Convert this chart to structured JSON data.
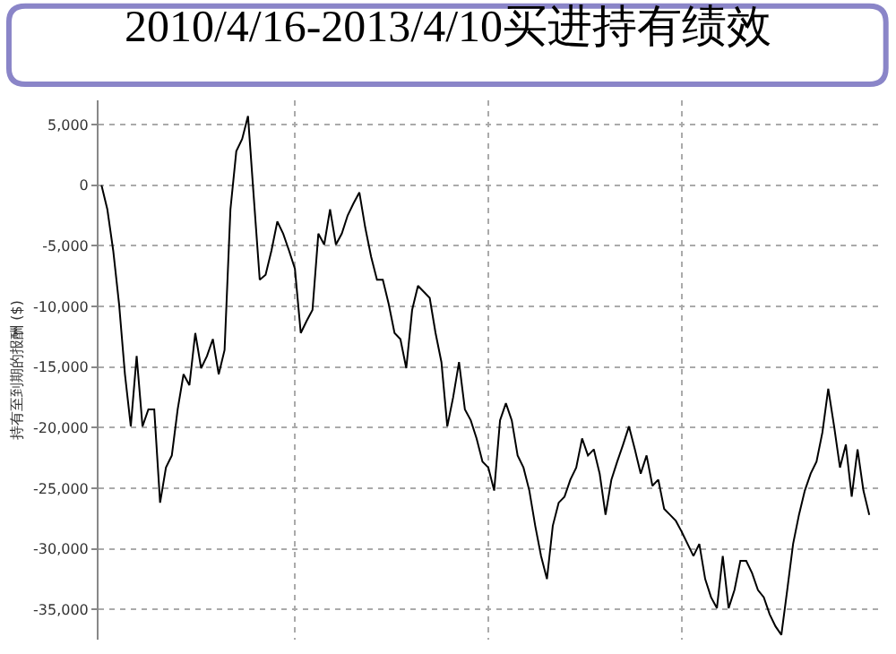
{
  "chart_data": {
    "type": "line",
    "title": "2010/4/16-2013/4/10买进持有绩效",
    "ylabel": "持有至到期的报酬 ($)",
    "categories": [
      null,
      null,
      null,
      null,
      null,
      null,
      null,
      null,
      null,
      null,
      null,
      null,
      null,
      null,
      null,
      null,
      null,
      null,
      null,
      null,
      null,
      null,
      null,
      null,
      null,
      null,
      null,
      null,
      null,
      null,
      null,
      null,
      null,
      null,
      null,
      null,
      null,
      null,
      null,
      null,
      null,
      null,
      null,
      null,
      null,
      null,
      null,
      null,
      null,
      null,
      null,
      null,
      null,
      null,
      null,
      null,
      null,
      null,
      null,
      null,
      null,
      null,
      null,
      null,
      null,
      null,
      null,
      null,
      null,
      null,
      null,
      null,
      null,
      null,
      null,
      null,
      null,
      null,
      null,
      null,
      null,
      null,
      null,
      null,
      null,
      null,
      null,
      null,
      null,
      null,
      null,
      null,
      null,
      null,
      null,
      null,
      null,
      null,
      null,
      null,
      null,
      null,
      null,
      null,
      null,
      null,
      null,
      null,
      null,
      null,
      null,
      null,
      null,
      null,
      null,
      null,
      null,
      null,
      null,
      null,
      null,
      null,
      null,
      null,
      null,
      null,
      null,
      null,
      null,
      null,
      null,
      null
    ],
    "series": [
      {
        "color": "#000000",
        "values": [
          0,
          -2000,
          -5400,
          -9800,
          -15600,
          -19900,
          -14100,
          -19900,
          -18500,
          -18500,
          -26200,
          -23300,
          -22300,
          -18500,
          -15600,
          -16500,
          -12200,
          -15100,
          -14100,
          -12700,
          -15600,
          -13600,
          -2000,
          2800,
          3800,
          5700,
          -1100,
          -7800,
          -7400,
          -5400,
          -3000,
          -4000,
          -5400,
          -6900,
          -12200,
          -11200,
          -10300,
          -4000,
          -4900,
          -2000,
          -4900,
          -4000,
          -2500,
          -1500,
          -600,
          -3500,
          -5900,
          -7800,
          -7800,
          -9800,
          -12200,
          -12700,
          -15100,
          -10300,
          -8300,
          -8800,
          -9300,
          -12200,
          -14600,
          -19900,
          -17500,
          -14600,
          -18500,
          -19400,
          -20900,
          -22800,
          -23300,
          -25200,
          -19400,
          -18000,
          -19400,
          -22300,
          -23300,
          -25200,
          -28100,
          -30600,
          -32500,
          -28100,
          -26200,
          -25700,
          -24300,
          -23300,
          -20900,
          -22300,
          -21800,
          -23800,
          -27200,
          -24300,
          -22800,
          -21400,
          -19900,
          -21800,
          -23800,
          -22300,
          -24800,
          -24300,
          -26700,
          -27200,
          -27700,
          -28600,
          -29600,
          -30600,
          -29600,
          -32500,
          -34000,
          -34900,
          -30600,
          -34900,
          -33400,
          -31000,
          -31000,
          -32000,
          -33400,
          -34000,
          -35400,
          -36400,
          -37100,
          -33400,
          -29600,
          -27200,
          -25200,
          -23800,
          -22800,
          -20400,
          -16800,
          -19900,
          -23300,
          -21400,
          -25700,
          -21800,
          -25200,
          -27200
        ]
      }
    ],
    "ylim": [
      -37500,
      7000
    ],
    "yticks": [
      {
        "value": 5000,
        "label": "5,000"
      },
      0,
      {
        "value": -5000,
        "label": "-5,000"
      },
      {
        "value": -10000,
        "label": "-10,000"
      },
      {
        "value": -15000,
        "label": "-15,000"
      },
      {
        "value": -20000,
        "label": "-20,000"
      },
      {
        "value": -25000,
        "label": "-25,000"
      },
      {
        "value": -30000,
        "label": "-30,000"
      },
      {
        "value": -35000,
        "label": "-35,000"
      }
    ],
    "grid": true,
    "tick_labels": "y"
  }
}
